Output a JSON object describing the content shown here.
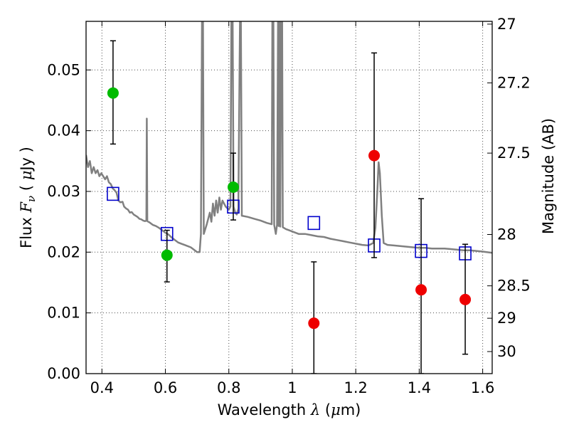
{
  "chart_data": {
    "type": "scatter",
    "title": "",
    "xlabel": "Wavelength",
    "xlabel_symbol": "λ",
    "xlabel_unit_prefix": "(",
    "xlabel_unit_mu": "μ",
    "xlabel_unit_suffix": "m)",
    "ylabel": "Flux",
    "ylabel_symbol_base": "F",
    "ylabel_symbol_sub": "ν",
    "ylabel_unit_prefix": "(",
    "ylabel_unit_mu": "μ",
    "ylabel_unit_suffix": "Jy )",
    "y2label": "Magnitude (AB)",
    "xlim": [
      0.35,
      1.63
    ],
    "ylim": [
      0.0,
      0.058
    ],
    "grid": true,
    "x_ticks": [
      0.4,
      0.6,
      0.8,
      1.0,
      1.2,
      1.4,
      1.6
    ],
    "x_tick_labels": [
      "0.4",
      "0.6",
      "0.8",
      "1",
      "1.2",
      "1.4",
      "1.6"
    ],
    "y_ticks": [
      0.0,
      0.01,
      0.02,
      0.03,
      0.04,
      0.05
    ],
    "y_tick_labels": [
      "0.00",
      "0.01",
      "0.02",
      "0.03",
      "0.04",
      "0.05"
    ],
    "y2_ticks": [
      27,
      27.2,
      27.5,
      28,
      28.5,
      29,
      30
    ],
    "y2_tick_labels": [
      "27",
      "27.2",
      "27.5",
      "28",
      "28.5",
      "29",
      "30"
    ],
    "colors": {
      "template": "#808080",
      "green": "#00bb00",
      "red": "#ee0000",
      "model_box": "#0000cc",
      "errorbar": "#000000"
    },
    "series": [
      {
        "marker": "circle",
        "color": "#00bb00",
        "points": [
          {
            "x": 0.435,
            "y": 0.0462,
            "ylow": 0.0378,
            "yhigh": 0.0548
          },
          {
            "x": 0.605,
            "y": 0.0195,
            "ylow": 0.0151,
            "yhigh": 0.0236
          },
          {
            "x": 0.814,
            "y": 0.0307,
            "ylow": 0.0253,
            "yhigh": 0.0363
          }
        ]
      },
      {
        "marker": "circle",
        "color": "#ee0000",
        "points": [
          {
            "x": 1.068,
            "y": 0.0083,
            "ylow": 0.0,
            "yhigh": 0.0184
          },
          {
            "x": 1.258,
            "y": 0.0359,
            "ylow": 0.0191,
            "yhigh": 0.0528
          },
          {
            "x": 1.406,
            "y": 0.0138,
            "ylow": 0.0,
            "yhigh": 0.0288
          },
          {
            "x": 1.545,
            "y": 0.0122,
            "ylow": 0.0032,
            "yhigh": 0.0213
          }
        ]
      },
      {
        "marker": "open-square",
        "color": "#0000cc",
        "points": [
          {
            "x": 0.435,
            "y": 0.0296
          },
          {
            "x": 0.605,
            "y": 0.023
          },
          {
            "x": 0.814,
            "y": 0.0275
          },
          {
            "x": 1.068,
            "y": 0.0248
          },
          {
            "x": 1.258,
            "y": 0.0211
          },
          {
            "x": 1.406,
            "y": 0.0202
          },
          {
            "x": 1.545,
            "y": 0.0198
          }
        ]
      },
      {
        "type": "line",
        "color": "#808080",
        "points": [
          [
            0.35,
            0.036
          ],
          [
            0.356,
            0.034
          ],
          [
            0.362,
            0.035
          ],
          [
            0.368,
            0.033
          ],
          [
            0.374,
            0.034
          ],
          [
            0.38,
            0.033
          ],
          [
            0.386,
            0.0335
          ],
          [
            0.392,
            0.0325
          ],
          [
            0.398,
            0.033
          ],
          [
            0.404,
            0.0325
          ],
          [
            0.41,
            0.032
          ],
          [
            0.416,
            0.0325
          ],
          [
            0.422,
            0.0315
          ],
          [
            0.428,
            0.0312
          ],
          [
            0.434,
            0.0305
          ],
          [
            0.44,
            0.0302
          ],
          [
            0.446,
            0.0298
          ],
          [
            0.452,
            0.0285
          ],
          [
            0.458,
            0.0282
          ],
          [
            0.465,
            0.0283
          ],
          [
            0.47,
            0.0275
          ],
          [
            0.476,
            0.0272
          ],
          [
            0.482,
            0.027
          ],
          [
            0.488,
            0.0265
          ],
          [
            0.494,
            0.0266
          ],
          [
            0.5,
            0.0262
          ],
          [
            0.506,
            0.026
          ],
          [
            0.512,
            0.0258
          ],
          [
            0.518,
            0.0255
          ],
          [
            0.524,
            0.0254
          ],
          [
            0.53,
            0.0252
          ],
          [
            0.536,
            0.0251
          ],
          [
            0.54,
            0.0252
          ],
          [
            0.5415,
            0.042
          ],
          [
            0.543,
            0.0251
          ],
          [
            0.55,
            0.0249
          ],
          [
            0.56,
            0.0245
          ],
          [
            0.57,
            0.0243
          ],
          [
            0.58,
            0.024
          ],
          [
            0.59,
            0.0236
          ],
          [
            0.6,
            0.0232
          ],
          [
            0.61,
            0.0229
          ],
          [
            0.62,
            0.0224
          ],
          [
            0.63,
            0.022
          ],
          [
            0.64,
            0.0216
          ],
          [
            0.65,
            0.0214
          ],
          [
            0.66,
            0.0212
          ],
          [
            0.67,
            0.021
          ],
          [
            0.68,
            0.0208
          ],
          [
            0.69,
            0.0204
          ],
          [
            0.7,
            0.02
          ],
          [
            0.708,
            0.02
          ],
          [
            0.712,
            0.023
          ],
          [
            0.7155,
            0.058
          ],
          [
            0.7185,
            0.058
          ],
          [
            0.721,
            0.023
          ],
          [
            0.73,
            0.0245
          ],
          [
            0.74,
            0.0265
          ],
          [
            0.745,
            0.025
          ],
          [
            0.75,
            0.028
          ],
          [
            0.755,
            0.026
          ],
          [
            0.76,
            0.0285
          ],
          [
            0.765,
            0.0265
          ],
          [
            0.77,
            0.029
          ],
          [
            0.775,
            0.027
          ],
          [
            0.78,
            0.0285
          ],
          [
            0.79,
            0.0275
          ],
          [
            0.8,
            0.027
          ],
          [
            0.805,
            0.0275
          ],
          [
            0.808,
            0.058
          ],
          [
            0.812,
            0.058
          ],
          [
            0.815,
            0.0275
          ],
          [
            0.82,
            0.0265
          ],
          [
            0.825,
            0.0262
          ],
          [
            0.83,
            0.0272
          ],
          [
            0.835,
            0.058
          ],
          [
            0.838,
            0.058
          ],
          [
            0.841,
            0.026
          ],
          [
            0.86,
            0.0258
          ],
          [
            0.88,
            0.0255
          ],
          [
            0.9,
            0.0252
          ],
          [
            0.92,
            0.0248
          ],
          [
            0.935,
            0.0246
          ],
          [
            0.937,
            0.058
          ],
          [
            0.9405,
            0.058
          ],
          [
            0.943,
            0.0245
          ],
          [
            0.948,
            0.023
          ],
          [
            0.952,
            0.0245
          ],
          [
            0.955,
            0.058
          ],
          [
            0.957,
            0.0243
          ],
          [
            0.96,
            0.058
          ],
          [
            0.962,
            0.0242
          ],
          [
            0.965,
            0.058
          ],
          [
            0.968,
            0.058
          ],
          [
            0.97,
            0.0241
          ],
          [
            0.98,
            0.0238
          ],
          [
            0.99,
            0.0236
          ],
          [
            1.0,
            0.0234
          ],
          [
            1.02,
            0.023
          ],
          [
            1.04,
            0.023
          ],
          [
            1.06,
            0.0228
          ],
          [
            1.08,
            0.0226
          ],
          [
            1.1,
            0.0225
          ],
          [
            1.12,
            0.0222
          ],
          [
            1.14,
            0.022
          ],
          [
            1.16,
            0.0218
          ],
          [
            1.18,
            0.0216
          ],
          [
            1.2,
            0.0214
          ],
          [
            1.22,
            0.0212
          ],
          [
            1.24,
            0.0211
          ],
          [
            1.255,
            0.0215
          ],
          [
            1.262,
            0.024
          ],
          [
            1.268,
            0.03
          ],
          [
            1.272,
            0.0348
          ],
          [
            1.276,
            0.033
          ],
          [
            1.282,
            0.026
          ],
          [
            1.288,
            0.0215
          ],
          [
            1.3,
            0.0212
          ],
          [
            1.32,
            0.0211
          ],
          [
            1.34,
            0.021
          ],
          [
            1.36,
            0.0209
          ],
          [
            1.38,
            0.0208
          ],
          [
            1.4,
            0.0207
          ],
          [
            1.42,
            0.0207
          ],
          [
            1.44,
            0.0206
          ],
          [
            1.46,
            0.0206
          ],
          [
            1.48,
            0.0206
          ],
          [
            1.5,
            0.0205
          ],
          [
            1.52,
            0.0204
          ],
          [
            1.54,
            0.0203
          ],
          [
            1.56,
            0.0203
          ],
          [
            1.58,
            0.0202
          ],
          [
            1.6,
            0.0201
          ],
          [
            1.63,
            0.0199
          ]
        ]
      }
    ]
  }
}
